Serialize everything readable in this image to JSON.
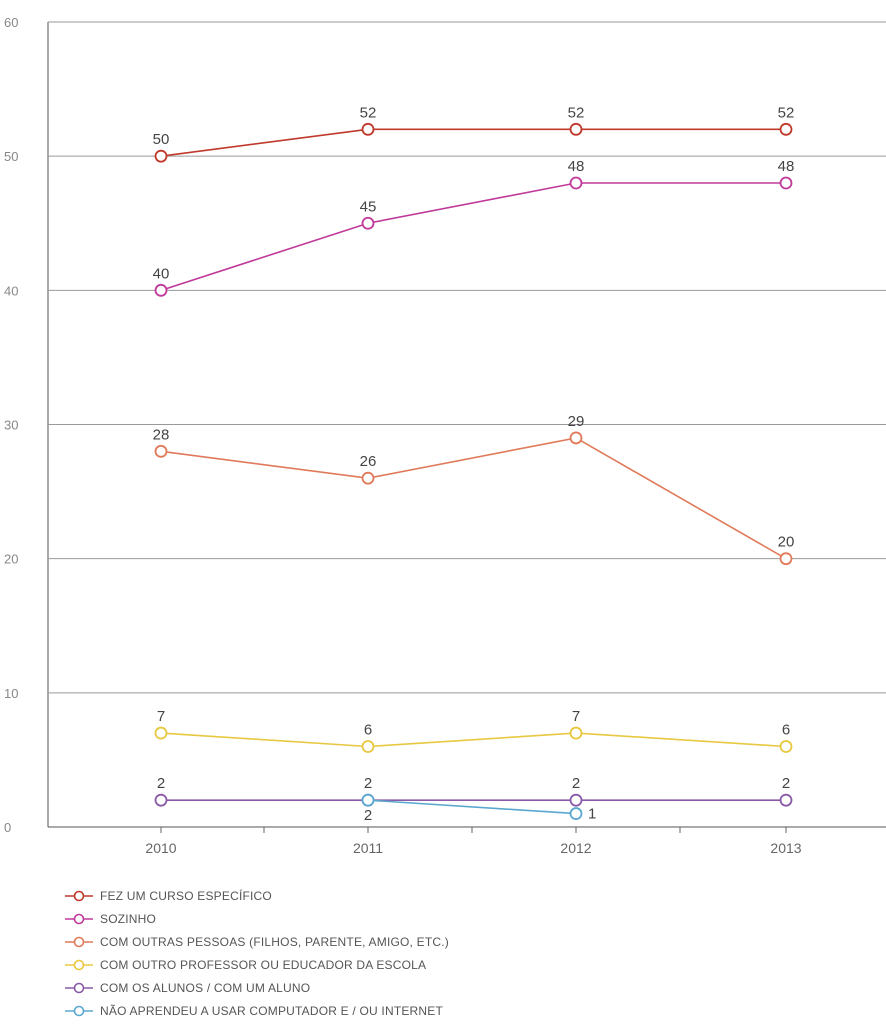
{
  "chart_data": {
    "type": "line",
    "title": "",
    "xlabel": "",
    "ylabel": "",
    "categories": [
      "2010",
      "2011",
      "2012",
      "2013"
    ],
    "ylim": [
      0,
      60
    ],
    "yticks": [
      "0",
      "10",
      "20",
      "30",
      "40",
      "50",
      "60"
    ],
    "grid": true,
    "legend_position": "bottom-left",
    "series": [
      {
        "name": "FEZ UM CURSO ESPECÍFICO",
        "color": "#c0392b",
        "values": [
          50,
          52,
          52,
          52
        ],
        "labels": [
          "50",
          "52",
          "52",
          "52"
        ]
      },
      {
        "name": "SOZINHO",
        "color": "#c0399a",
        "values": [
          40,
          45,
          48,
          48
        ],
        "labels": [
          "40",
          "45",
          "48",
          "48"
        ]
      },
      {
        "name": "COM OUTRAS PESSOAS (FILHOS, PARENTE, AMIGO, ETC.)",
        "color": "#e07a5a",
        "values": [
          28,
          26,
          29,
          20
        ],
        "labels": [
          "28",
          "26",
          "29",
          "20"
        ]
      },
      {
        "name": "COM OUTRO PROFESSOR OU EDUCADOR DA ESCOLA",
        "color": "#e8c840",
        "values": [
          7,
          6,
          7,
          6
        ],
        "labels": [
          "7",
          "6",
          "7",
          "6"
        ]
      },
      {
        "name": "COM OS ALUNOS / COM UM ALUNO",
        "color": "#8a5aa8",
        "values": [
          2,
          2,
          2,
          2
        ],
        "labels": [
          "2",
          "2",
          "2",
          "2"
        ]
      },
      {
        "name": "NÃO APRENDEU A USAR COMPUTADOR E / OU INTERNET",
        "color": "#5aa8d0",
        "values": [
          null,
          2,
          1,
          null
        ],
        "labels": [
          null,
          "2",
          "1",
          null
        ]
      }
    ]
  }
}
